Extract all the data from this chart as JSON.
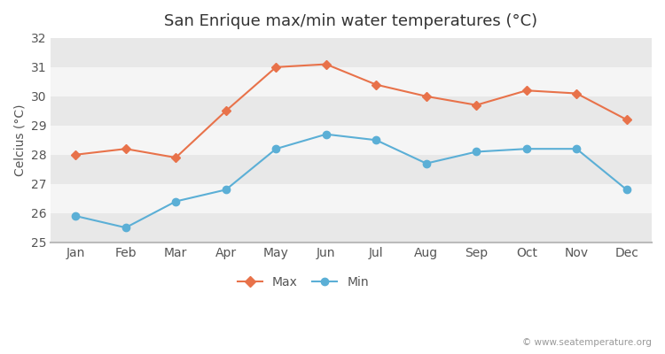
{
  "title": "San Enrique max/min water temperatures (°C)",
  "ylabel": "Celcius (°C)",
  "months": [
    "Jan",
    "Feb",
    "Mar",
    "Apr",
    "May",
    "Jun",
    "Jul",
    "Aug",
    "Sep",
    "Oct",
    "Nov",
    "Dec"
  ],
  "max_temps": [
    28.0,
    28.2,
    27.9,
    29.5,
    31.0,
    31.1,
    30.4,
    30.0,
    29.7,
    30.2,
    30.1,
    29.2
  ],
  "min_temps": [
    25.9,
    25.5,
    26.4,
    26.8,
    28.2,
    28.7,
    28.5,
    27.7,
    28.1,
    28.2,
    28.2,
    26.8
  ],
  "max_color": "#e8724a",
  "min_color": "#5bafd6",
  "bg_color": "#ffffff",
  "band_colors": [
    "#e8e8e8",
    "#f5f5f5"
  ],
  "ylim": [
    25,
    32
  ],
  "yticks": [
    25,
    26,
    27,
    28,
    29,
    30,
    31,
    32
  ],
  "watermark": "© www.seatemperature.org",
  "legend_max": "Max",
  "legend_min": "Min",
  "title_fontsize": 13,
  "label_fontsize": 10,
  "tick_fontsize": 10
}
